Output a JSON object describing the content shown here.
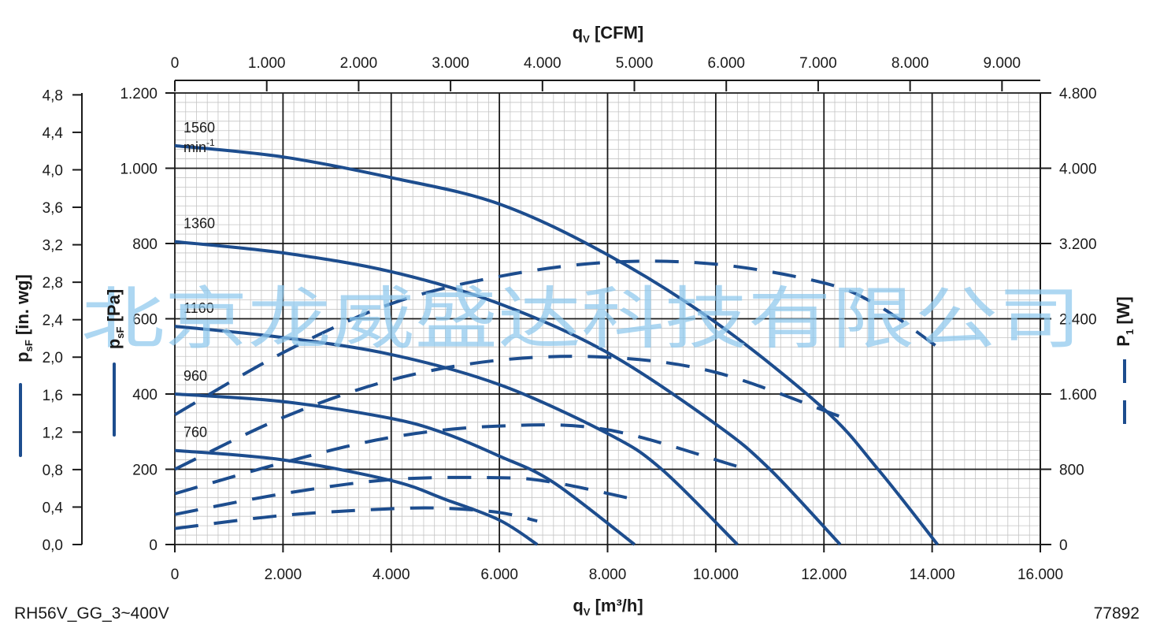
{
  "chart_data": {
    "type": "line",
    "x_bottom": {
      "label_main": "q",
      "label_sub": "V",
      "label_unit": " [m³/h]",
      "range": [
        0,
        16000
      ],
      "ticks": [
        0,
        2000,
        4000,
        6000,
        8000,
        10000,
        12000,
        14000,
        16000
      ],
      "tick_labels": [
        "0",
        "2.000",
        "4.000",
        "6.000",
        "8.000",
        "10.000",
        "12.000",
        "14.000",
        "16.000"
      ]
    },
    "x_top": {
      "label_main": "q",
      "label_sub": "V",
      "label_unit": " [CFM]",
      "range": [
        0,
        9417
      ],
      "ticks": [
        0,
        1000,
        2000,
        3000,
        4000,
        5000,
        6000,
        7000,
        8000,
        9000
      ],
      "tick_labels": [
        "0",
        "1.000",
        "2.000",
        "3.000",
        "4.000",
        "5.000",
        "6.000",
        "7.000",
        "8.000",
        "9.000"
      ]
    },
    "y_left_outer": {
      "label_main": "p",
      "label_sub": "sF",
      "label_unit": " [in. wg]",
      "range": [
        0,
        4.82
      ],
      "ticks": [
        0,
        0.4,
        0.8,
        1.2,
        1.6,
        2.0,
        2.4,
        2.8,
        3.2,
        3.6,
        4.0,
        4.4,
        4.8
      ],
      "tick_labels": [
        "0,0",
        "0,4",
        "0,8",
        "1,2",
        "1,6",
        "2,0",
        "2,4",
        "2,8",
        "3,2",
        "3,6",
        "4,0",
        "4,4",
        "4,8"
      ]
    },
    "y_left_inner": {
      "label_main": "p",
      "label_sub": "sF",
      "label_unit": " [Pa]",
      "range": [
        0,
        1200
      ],
      "ticks": [
        0,
        200,
        400,
        600,
        800,
        1000,
        1200
      ],
      "tick_labels": [
        "0",
        "200",
        "400",
        "600",
        "800",
        "1.000",
        "1.200"
      ]
    },
    "y_right": {
      "label_main": "P",
      "label_sub": "1",
      "label_unit": " [W]",
      "range": [
        0,
        4800
      ],
      "ticks": [
        0,
        800,
        1600,
        2400,
        3200,
        4000,
        4800
      ],
      "tick_labels": [
        "0",
        "800",
        "1.600",
        "2.400",
        "3.200",
        "4.000",
        "4.800"
      ]
    },
    "grid": true,
    "line_color": "#1d4d8e",
    "pressure_series": [
      {
        "speed": "1560",
        "unit": "min",
        "unit_exp": "-1",
        "x": [
          0,
          2000,
          4000,
          6000,
          8000,
          10000,
          12000,
          13000,
          14100
        ],
        "y": [
          1060,
          1030,
          975,
          905,
          770,
          590,
          360,
          200,
          0
        ]
      },
      {
        "speed": "1360",
        "x": [
          0,
          2000,
          4000,
          6000,
          8000,
          10000,
          11000,
          12300
        ],
        "y": [
          805,
          775,
          725,
          640,
          510,
          320,
          200,
          0
        ]
      },
      {
        "speed": "1160",
        "x": [
          0,
          2000,
          4000,
          6000,
          8000,
          9000,
          10400
        ],
        "y": [
          580,
          550,
          505,
          425,
          295,
          200,
          0
        ]
      },
      {
        "speed": "960",
        "x": [
          0,
          2000,
          4000,
          5000,
          6000,
          7000,
          8500
        ],
        "y": [
          400,
          380,
          335,
          295,
          235,
          165,
          0
        ]
      },
      {
        "speed": "760",
        "x": [
          0,
          2000,
          4000,
          5000,
          6000,
          6700
        ],
        "y": [
          250,
          225,
          170,
          120,
          65,
          0
        ]
      }
    ],
    "power_series": [
      {
        "speed": "1560",
        "x": [
          0,
          2000,
          4000,
          6000,
          8000,
          10000,
          12000,
          13000,
          14100
        ],
        "y": [
          1380,
          2040,
          2560,
          2850,
          3000,
          2980,
          2780,
          2540,
          2100
        ]
      },
      {
        "speed": "1360",
        "x": [
          0,
          2000,
          4000,
          6000,
          8000,
          10000,
          12300
        ],
        "y": [
          800,
          1350,
          1750,
          1960,
          1990,
          1830,
          1360
        ]
      },
      {
        "speed": "1160",
        "x": [
          0,
          2000,
          4000,
          6000,
          8000,
          10400
        ],
        "y": [
          540,
          870,
          1140,
          1260,
          1220,
          830
        ]
      },
      {
        "speed": "960",
        "x": [
          0,
          2000,
          4000,
          6000,
          7000,
          8500
        ],
        "y": [
          320,
          540,
          690,
          710,
          660,
          480
        ]
      },
      {
        "speed": "760",
        "x": [
          0,
          2000,
          4000,
          5000,
          6000,
          6700
        ],
        "y": [
          170,
          310,
          380,
          385,
          340,
          250
        ]
      }
    ]
  },
  "watermark_text": "北京龙威盛达科技有限公司",
  "footer": {
    "model": "RH56V_GG_3~400V",
    "code": "77892"
  }
}
